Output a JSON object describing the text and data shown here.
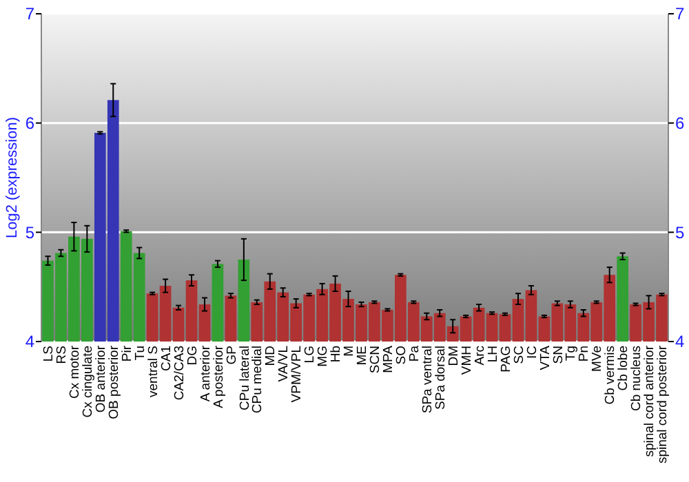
{
  "chart_data": {
    "type": "bar",
    "ylabel": "Log2 (expression)",
    "categories": [
      "LS",
      "RS",
      "Cx motor",
      "Cx cingulate",
      "OB anterior",
      "OB posterior",
      "Pir",
      "Tu",
      "ventral S",
      "CA1",
      "CA2/CA3",
      "DG",
      "A anterior",
      "A posterior",
      "GP",
      "CPu lateral",
      "CPu medial",
      "MD",
      "VA/VL",
      "VPM/VPL",
      "LG",
      "MG",
      "Hb",
      "M",
      "ME",
      "SCN",
      "MPA",
      "SO",
      "Pa",
      "SPa ventral",
      "SPa dorsal",
      "DM",
      "VMH",
      "Arc",
      "LH",
      "PAG",
      "SC",
      "IC",
      "VTA",
      "SN",
      "Tg",
      "Pn",
      "MVe",
      "Cb vermis",
      "Cb lobe",
      "Cb nucleus",
      "spinal cord anterior",
      "spinal cord posterior"
    ],
    "values": [
      4.74,
      4.81,
      4.96,
      4.94,
      5.91,
      6.21,
      5.01,
      4.81,
      4.44,
      4.51,
      4.31,
      4.56,
      4.34,
      4.71,
      4.42,
      4.75,
      4.36,
      4.55,
      4.45,
      4.35,
      4.43,
      4.48,
      4.53,
      4.39,
      4.34,
      4.36,
      4.29,
      4.61,
      4.36,
      4.23,
      4.26,
      4.14,
      4.23,
      4.31,
      4.26,
      4.25,
      4.39,
      4.47,
      4.23,
      4.35,
      4.34,
      4.26,
      4.36,
      4.61,
      4.78,
      4.34,
      4.36,
      4.43
    ],
    "errors": [
      0.04,
      0.03,
      0.13,
      0.12,
      0.01,
      0.15,
      0.01,
      0.05,
      0.01,
      0.06,
      0.02,
      0.05,
      0.06,
      0.03,
      0.02,
      0.19,
      0.02,
      0.07,
      0.04,
      0.04,
      0.01,
      0.05,
      0.07,
      0.07,
      0.02,
      0.01,
      0.01,
      0.01,
      0.01,
      0.03,
      0.03,
      0.06,
      0.01,
      0.03,
      0.01,
      0.01,
      0.05,
      0.04,
      0.01,
      0.02,
      0.03,
      0.03,
      0.01,
      0.07,
      0.03,
      0.01,
      0.06,
      0.01
    ],
    "colors": [
      "#33a033",
      "#33a033",
      "#33a033",
      "#33a033",
      "#3535b5",
      "#3535b5",
      "#33a033",
      "#33a033",
      "#b03232",
      "#b03232",
      "#b03232",
      "#b03232",
      "#b03232",
      "#33a033",
      "#b03232",
      "#33a033",
      "#b03232",
      "#b03232",
      "#b03232",
      "#b03232",
      "#b03232",
      "#b03232",
      "#b03232",
      "#b03232",
      "#b03232",
      "#b03232",
      "#b03232",
      "#b03232",
      "#b03232",
      "#b03232",
      "#b03232",
      "#b03232",
      "#b03232",
      "#b03232",
      "#b03232",
      "#b03232",
      "#b03232",
      "#b03232",
      "#b03232",
      "#b03232",
      "#b03232",
      "#b03232",
      "#b03232",
      "#b03232",
      "#33a033",
      "#b03232",
      "#b03232",
      "#b03232"
    ],
    "ylim": [
      4,
      7
    ],
    "yticks": [
      4,
      5,
      6,
      7
    ],
    "y2lim": [
      4,
      7
    ],
    "y2ticks": [
      4,
      5,
      6,
      7
    ],
    "grid": "y"
  }
}
